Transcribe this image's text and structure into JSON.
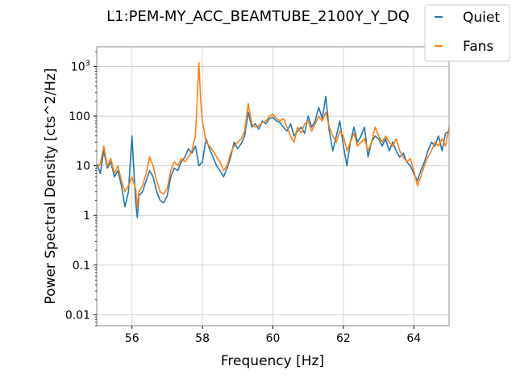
{
  "chart_data": {
    "type": "line",
    "title": "L1:PEM-MY_ACC_BEAMTUBE_2100Y_Y_DQ",
    "xlabel": "Frequency [Hz]",
    "ylabel": "Power Spectral Density [cts^2/Hz]",
    "xlim": [
      55,
      65
    ],
    "ylim": [
      0.006,
      2500
    ],
    "yscale": "log",
    "grid": true,
    "legend_position": "top-right",
    "x_ticks": [
      {
        "value": 56,
        "label": "56"
      },
      {
        "value": 58,
        "label": "58"
      },
      {
        "value": 60,
        "label": "60"
      },
      {
        "value": 62,
        "label": "62"
      },
      {
        "value": 64,
        "label": "64"
      }
    ],
    "y_ticks": [
      {
        "value": 0.01,
        "label": "0.01"
      },
      {
        "value": 0.1,
        "label": "0.1"
      },
      {
        "value": 1,
        "label": "1"
      },
      {
        "value": 10,
        "label": "10"
      },
      {
        "value": 100,
        "label": "100"
      },
      {
        "value": 1000,
        "label": "10^3"
      }
    ],
    "series": [
      {
        "name": "Quiet",
        "color": "#1f77b4",
        "points": [
          [
            55.0,
            11
          ],
          [
            55.1,
            7
          ],
          [
            55.2,
            20
          ],
          [
            55.3,
            9
          ],
          [
            55.4,
            12
          ],
          [
            55.5,
            6
          ],
          [
            55.6,
            8
          ],
          [
            55.7,
            4
          ],
          [
            55.8,
            1.5
          ],
          [
            55.9,
            3
          ],
          [
            56.0,
            40
          ],
          [
            56.1,
            2
          ],
          [
            56.15,
            0.9
          ],
          [
            56.2,
            2.5
          ],
          [
            56.3,
            3
          ],
          [
            56.4,
            5
          ],
          [
            56.5,
            8
          ],
          [
            56.6,
            6
          ],
          [
            56.7,
            3
          ],
          [
            56.8,
            2
          ],
          [
            56.9,
            1.8
          ],
          [
            57.0,
            2.5
          ],
          [
            57.1,
            6
          ],
          [
            57.2,
            9
          ],
          [
            57.3,
            8
          ],
          [
            57.4,
            12
          ],
          [
            57.5,
            15
          ],
          [
            57.6,
            22
          ],
          [
            57.7,
            18
          ],
          [
            57.8,
            25
          ],
          [
            57.9,
            10
          ],
          [
            58.0,
            12
          ],
          [
            58.1,
            35
          ],
          [
            58.2,
            22
          ],
          [
            58.3,
            15
          ],
          [
            58.4,
            10
          ],
          [
            58.5,
            8
          ],
          [
            58.6,
            6
          ],
          [
            58.7,
            9
          ],
          [
            58.8,
            15
          ],
          [
            58.9,
            30
          ],
          [
            59.0,
            22
          ],
          [
            59.1,
            28
          ],
          [
            59.2,
            40
          ],
          [
            59.3,
            120
          ],
          [
            59.4,
            60
          ],
          [
            59.5,
            70
          ],
          [
            59.6,
            55
          ],
          [
            59.7,
            80
          ],
          [
            59.8,
            70
          ],
          [
            59.9,
            90
          ],
          [
            60.0,
            95
          ],
          [
            60.1,
            80
          ],
          [
            60.2,
            75
          ],
          [
            60.3,
            60
          ],
          [
            60.4,
            50
          ],
          [
            60.5,
            70
          ],
          [
            60.6,
            40
          ],
          [
            60.7,
            50
          ],
          [
            60.8,
            60
          ],
          [
            60.9,
            45
          ],
          [
            61.0,
            100
          ],
          [
            61.1,
            60
          ],
          [
            61.2,
            80
          ],
          [
            61.3,
            150
          ],
          [
            61.4,
            90
          ],
          [
            61.5,
            250
          ],
          [
            61.6,
            50
          ],
          [
            61.7,
            20
          ],
          [
            61.8,
            40
          ],
          [
            61.9,
            80
          ],
          [
            62.0,
            25
          ],
          [
            62.1,
            10
          ],
          [
            62.2,
            30
          ],
          [
            62.3,
            60
          ],
          [
            62.4,
            30
          ],
          [
            62.5,
            40
          ],
          [
            62.6,
            60
          ],
          [
            62.7,
            15
          ],
          [
            62.8,
            30
          ],
          [
            62.9,
            40
          ],
          [
            63.0,
            35
          ],
          [
            63.1,
            25
          ],
          [
            63.2,
            35
          ],
          [
            63.3,
            20
          ],
          [
            63.4,
            30
          ],
          [
            63.5,
            20
          ],
          [
            63.6,
            15
          ],
          [
            63.7,
            18
          ],
          [
            63.8,
            12
          ],
          [
            63.9,
            10
          ],
          [
            64.0,
            7
          ],
          [
            64.1,
            5
          ],
          [
            64.2,
            8
          ],
          [
            64.3,
            12
          ],
          [
            64.4,
            20
          ],
          [
            64.5,
            30
          ],
          [
            64.6,
            25
          ],
          [
            64.7,
            40
          ],
          [
            64.8,
            20
          ],
          [
            64.9,
            45
          ],
          [
            65.0,
            50
          ]
        ]
      },
      {
        "name": "Fans",
        "color": "#ff7f0e",
        "points": [
          [
            55.0,
            9
          ],
          [
            55.1,
            11
          ],
          [
            55.2,
            25
          ],
          [
            55.3,
            10
          ],
          [
            55.4,
            14
          ],
          [
            55.5,
            7
          ],
          [
            55.6,
            10
          ],
          [
            55.7,
            5
          ],
          [
            55.8,
            3
          ],
          [
            55.9,
            4
          ],
          [
            56.0,
            6
          ],
          [
            56.1,
            3.5
          ],
          [
            56.15,
            1.5
          ],
          [
            56.2,
            3
          ],
          [
            56.3,
            4
          ],
          [
            56.4,
            7
          ],
          [
            56.5,
            15
          ],
          [
            56.6,
            10
          ],
          [
            56.7,
            5
          ],
          [
            56.8,
            3
          ],
          [
            56.9,
            2.7
          ],
          [
            57.0,
            3.5
          ],
          [
            57.1,
            8
          ],
          [
            57.2,
            12
          ],
          [
            57.3,
            10
          ],
          [
            57.4,
            14
          ],
          [
            57.5,
            12
          ],
          [
            57.6,
            15
          ],
          [
            57.7,
            20
          ],
          [
            57.8,
            40
          ],
          [
            57.85,
            200
          ],
          [
            57.9,
            1200
          ],
          [
            57.95,
            200
          ],
          [
            58.0,
            80
          ],
          [
            58.1,
            30
          ],
          [
            58.2,
            25
          ],
          [
            58.3,
            20
          ],
          [
            58.4,
            15
          ],
          [
            58.5,
            12
          ],
          [
            58.6,
            8
          ],
          [
            58.7,
            10
          ],
          [
            58.8,
            18
          ],
          [
            58.9,
            25
          ],
          [
            59.0,
            30
          ],
          [
            59.1,
            35
          ],
          [
            59.2,
            50
          ],
          [
            59.3,
            180
          ],
          [
            59.4,
            70
          ],
          [
            59.5,
            60
          ],
          [
            59.6,
            65
          ],
          [
            59.7,
            75
          ],
          [
            59.8,
            80
          ],
          [
            59.9,
            100
          ],
          [
            60.0,
            110
          ],
          [
            60.1,
            90
          ],
          [
            60.2,
            80
          ],
          [
            60.3,
            90
          ],
          [
            60.4,
            60
          ],
          [
            60.5,
            40
          ],
          [
            60.6,
            30
          ],
          [
            60.7,
            60
          ],
          [
            60.8,
            45
          ],
          [
            60.9,
            70
          ],
          [
            61.0,
            80
          ],
          [
            61.1,
            50
          ],
          [
            61.2,
            70
          ],
          [
            61.3,
            100
          ],
          [
            61.4,
            80
          ],
          [
            61.5,
            120
          ],
          [
            61.6,
            60
          ],
          [
            61.7,
            40
          ],
          [
            61.8,
            30
          ],
          [
            61.9,
            50
          ],
          [
            62.0,
            40
          ],
          [
            62.1,
            20
          ],
          [
            62.2,
            30
          ],
          [
            62.3,
            45
          ],
          [
            62.4,
            25
          ],
          [
            62.5,
            30
          ],
          [
            62.6,
            35
          ],
          [
            62.7,
            20
          ],
          [
            62.8,
            30
          ],
          [
            62.9,
            60
          ],
          [
            63.0,
            40
          ],
          [
            63.1,
            30
          ],
          [
            63.2,
            40
          ],
          [
            63.3,
            30
          ],
          [
            63.4,
            25
          ],
          [
            63.5,
            35
          ],
          [
            63.6,
            20
          ],
          [
            63.7,
            15
          ],
          [
            63.8,
            12
          ],
          [
            63.9,
            14
          ],
          [
            64.0,
            8
          ],
          [
            64.1,
            4
          ],
          [
            64.2,
            6
          ],
          [
            64.3,
            10
          ],
          [
            64.4,
            15
          ],
          [
            64.5,
            20
          ],
          [
            64.6,
            30
          ],
          [
            64.7,
            25
          ],
          [
            64.8,
            35
          ],
          [
            64.9,
            25
          ],
          [
            65.0,
            60
          ]
        ]
      }
    ]
  }
}
